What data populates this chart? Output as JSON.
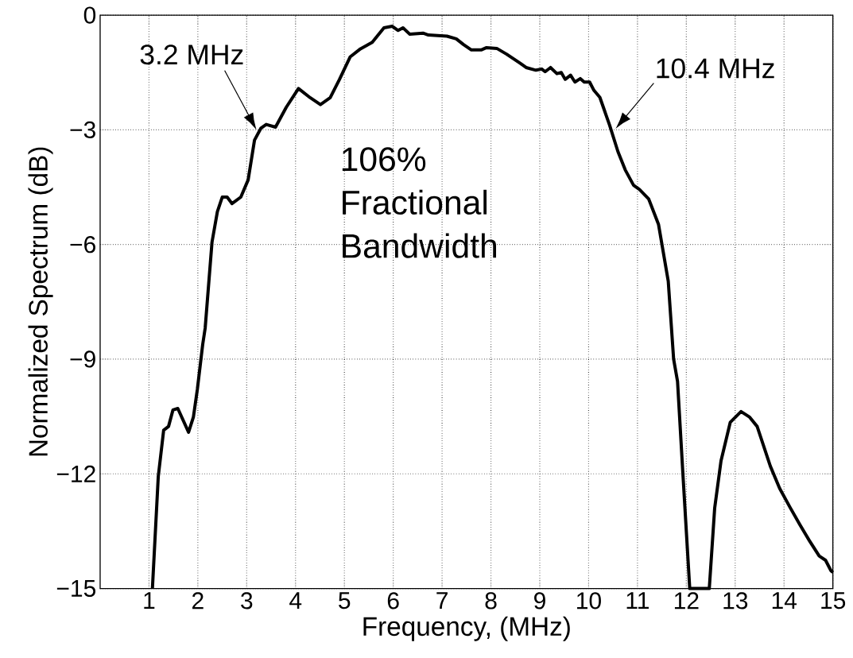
{
  "chart_data": {
    "type": "line",
    "xlabel": "Frequency, (MHz)",
    "ylabel": "Normalized Spectrum (dB)",
    "annotations": [
      {
        "text": "3.2 MHz",
        "x": 3.2,
        "y": -3
      },
      {
        "text": "10.4 MHz",
        "x": 10.4,
        "y": -3
      },
      "106% Fractional Bandwidth"
    ],
    "x": [
      1.07,
      1.19,
      1.3,
      1.4,
      1.49,
      1.59,
      1.81,
      1.91,
      1.99,
      2.1,
      2.15,
      2.29,
      2.4,
      2.5,
      2.6,
      2.7,
      2.88,
      3.03,
      3.16,
      3.29,
      3.4,
      3.59,
      3.81,
      4.06,
      4.3,
      4.51,
      4.71,
      4.9,
      5.12,
      5.33,
      5.57,
      5.81,
      5.98,
      6.1,
      6.2,
      6.34,
      6.61,
      6.72,
      7.1,
      7.29,
      7.44,
      7.6,
      7.8,
      7.91,
      8.12,
      8.32,
      8.6,
      8.72,
      8.92,
      9.04,
      9.11,
      9.22,
      9.35,
      9.44,
      9.52,
      9.63,
      9.72,
      9.83,
      9.91,
      10.02,
      10.11,
      10.23,
      10.43,
      10.6,
      10.75,
      10.92,
      11.04,
      11.23,
      11.43,
      11.63,
      11.74,
      11.82,
      11.93,
      12.07,
      12.47,
      12.58,
      12.71,
      12.9,
      13.12,
      13.29,
      13.45,
      13.72,
      13.91,
      14.12,
      14.32,
      14.53,
      14.72,
      14.85,
      14.96,
      15.0
    ],
    "series": [
      {
        "color": "#000000",
        "values": [
          -15,
          -12.07,
          -10.86,
          -10.76,
          -10.33,
          -10.29,
          -10.91,
          -10.51,
          -9.79,
          -8.61,
          -8.19,
          -5.94,
          -5.14,
          -4.76,
          -4.76,
          -4.93,
          -4.76,
          -4.31,
          -3.27,
          -2.96,
          -2.86,
          -2.93,
          -2.41,
          -1.92,
          -2.16,
          -2.34,
          -2.16,
          -1.68,
          -1.09,
          -0.88,
          -0.71,
          -0.33,
          -0.29,
          -0.4,
          -0.33,
          -0.5,
          -0.47,
          -0.52,
          -0.55,
          -0.62,
          -0.77,
          -0.91,
          -0.91,
          -0.85,
          -0.87,
          -1.02,
          -1.26,
          -1.37,
          -1.44,
          -1.41,
          -1.48,
          -1.37,
          -1.53,
          -1.5,
          -1.68,
          -1.57,
          -1.75,
          -1.66,
          -1.75,
          -1.75,
          -1.97,
          -2.15,
          -2.88,
          -3.57,
          -4.05,
          -4.45,
          -4.56,
          -4.81,
          -5.47,
          -6.96,
          -9.0,
          -9.58,
          -12.0,
          -15,
          -15,
          -12.9,
          -11.66,
          -10.65,
          -10.37,
          -10.51,
          -10.76,
          -11.8,
          -12.38,
          -12.87,
          -13.32,
          -13.77,
          -14.15,
          -14.26,
          -14.53,
          -14.58
        ]
      }
    ],
    "xlim": [
      0,
      15
    ],
    "ylim": [
      -15,
      0
    ],
    "xticks": [
      1,
      2,
      3,
      4,
      5,
      6,
      7,
      8,
      9,
      10,
      11,
      12,
      13,
      14,
      15
    ],
    "yticks": [
      {
        "value": -15,
        "label": "−15"
      },
      {
        "value": -12,
        "label": "−12"
      },
      {
        "value": -9,
        "label": "−9"
      },
      {
        "value": -6,
        "label": "−6"
      },
      {
        "value": -3,
        "label": "−3"
      },
      0
    ],
    "grid": true
  }
}
